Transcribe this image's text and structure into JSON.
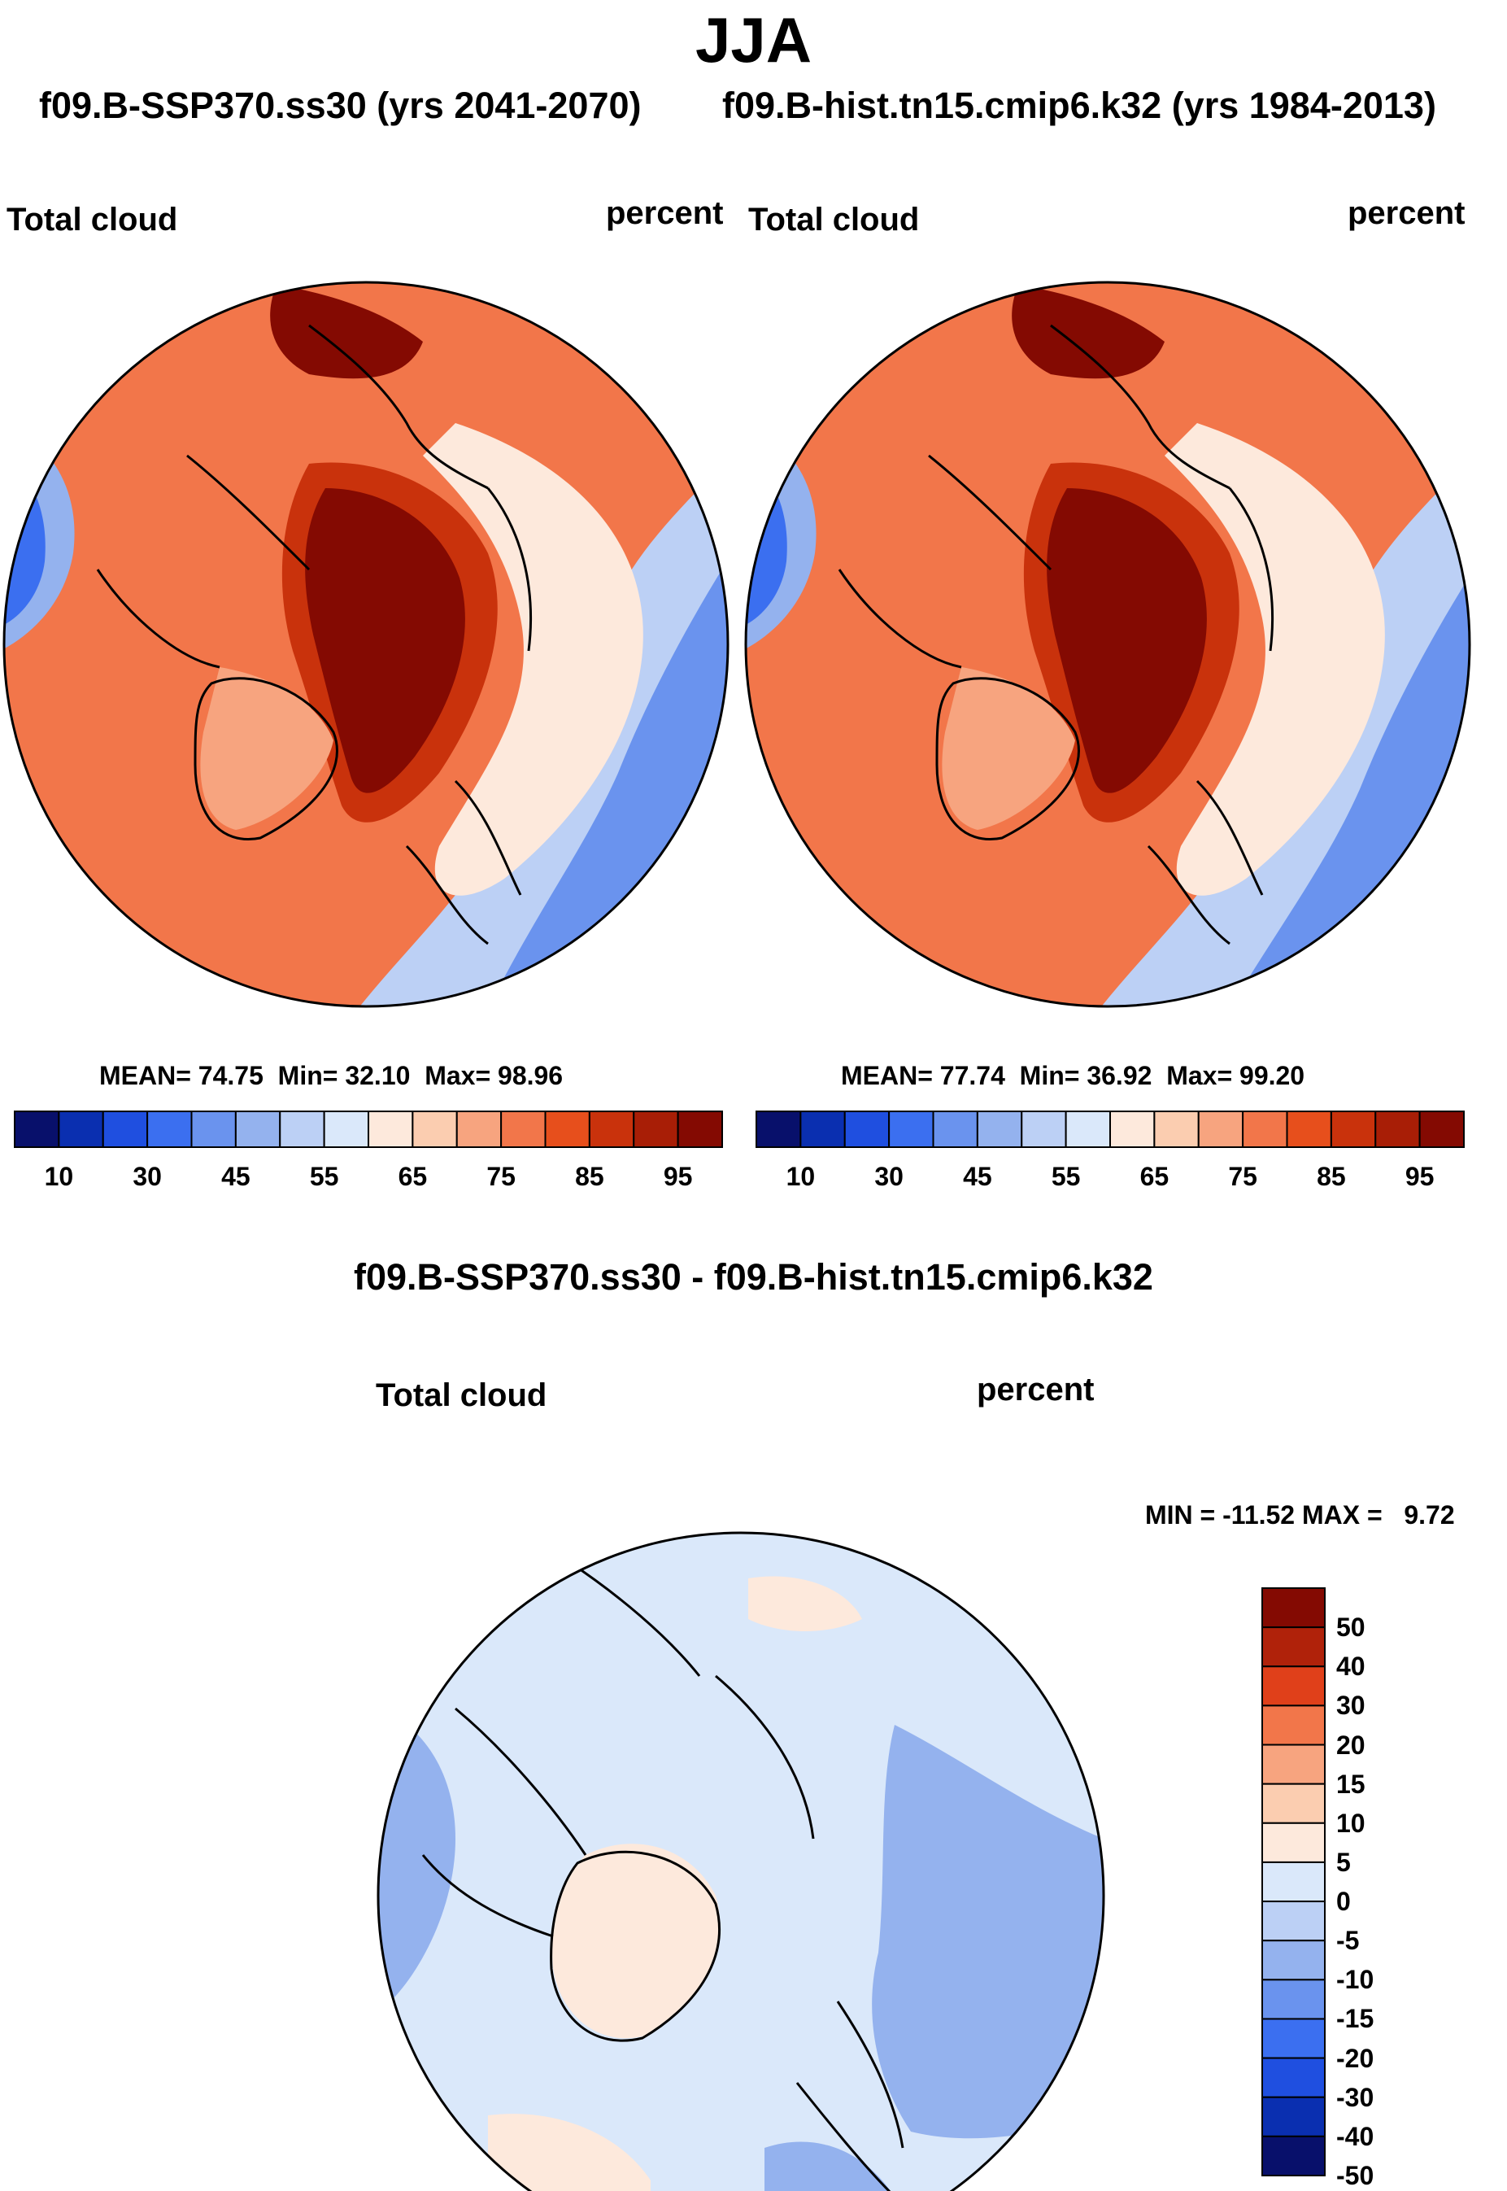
{
  "figure": {
    "season": "JJA",
    "case_a": {
      "title": "f09.B-SSP370.ss30 (yrs 2041-2070)"
    },
    "case_b": {
      "title": "f09.B-hist.tn15.cmip6.k32 (yrs 1984-2013)"
    },
    "diff_title": "f09.B-SSP370.ss30 - f09.B-hist.tn15.cmip6.k32"
  },
  "panels": [
    {
      "variable": "Total cloud",
      "units": "percent",
      "mean_label": "MEAN=",
      "mean": "74.75",
      "min_label": "Min=",
      "min": "32.10",
      "max_label": "Max=",
      "max": "98.96"
    },
    {
      "variable": "Total cloud",
      "units": "percent",
      "mean_label": "MEAN=",
      "mean": "77.74",
      "min_label": "Min=",
      "min": "36.92",
      "max_label": "Max=",
      "max": "99.20"
    }
  ],
  "difference": {
    "variable": "Total cloud",
    "units": "percent",
    "minmax_text": "MIN = -11.52 MAX =   9.72"
  },
  "colorbar_abs": {
    "colors": [
      "#08106b",
      "#0a2fb0",
      "#1f4fe0",
      "#3b6ff0",
      "#6a93ee",
      "#94b2ee",
      "#bcd0f5",
      "#dae8fa",
      "#fde9dc",
      "#fbcdb0",
      "#f7a47f",
      "#f2764a",
      "#e74f1c",
      "#c9320c",
      "#a81e06",
      "#840a02"
    ],
    "tick_labels": [
      "10",
      "30",
      "45",
      "55",
      "65",
      "75",
      "85",
      "95"
    ]
  },
  "colorbar_diff": {
    "colors": [
      "#840a02",
      "#b0220a",
      "#e0401a",
      "#f2764a",
      "#f7a47f",
      "#fbcdb0",
      "#fde9dc",
      "#dae8fa",
      "#bcd0f5",
      "#94b2ee",
      "#6a93ee",
      "#3b6ff0",
      "#1f4fe0",
      "#0a2fb0",
      "#08106b"
    ],
    "tick_labels": [
      "50",
      "40",
      "30",
      "20",
      "15",
      "10",
      "5",
      "0",
      "-5",
      "-10",
      "-15",
      "-20",
      "-30",
      "-40",
      "-50"
    ]
  },
  "map_fill_colors": {
    "high": "#840a02",
    "mid_high": "#e0401a",
    "mid": "#f7a47f",
    "neutral": "#dae8fa",
    "low": "#6a93ee",
    "diff_bg": "#dae8fa",
    "diff_neg": "#94b2ee",
    "diff_pos": "#fde9dc"
  }
}
